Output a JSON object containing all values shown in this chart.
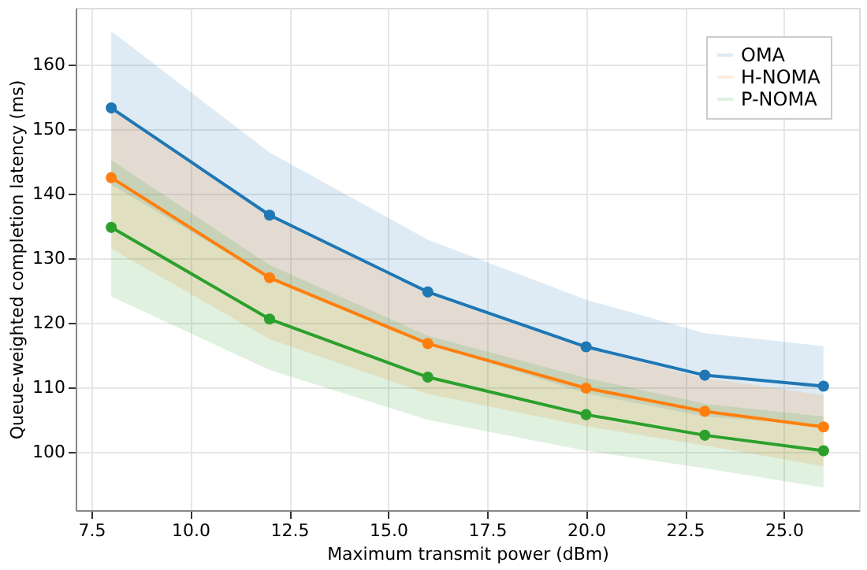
{
  "chart_data": {
    "type": "line",
    "xlabel": "Maximum transmit power (dBm)",
    "ylabel": "Queue-weighted completion latency (ms)",
    "x": [
      8,
      12,
      16,
      20,
      23,
      26
    ],
    "series": [
      {
        "name": "OMA",
        "color": "#1f77b4",
        "values": [
          153.3,
          136.7,
          124.8,
          116.3,
          111.9,
          110.2
        ],
        "lower": [
          141.4,
          127.0,
          116.8,
          109.1,
          105.5,
          104.1
        ],
        "upper": [
          165.2,
          146.4,
          132.9,
          123.6,
          118.4,
          116.4
        ]
      },
      {
        "name": "H-NOMA",
        "color": "#ff7f0e",
        "values": [
          142.5,
          127.0,
          116.8,
          109.9,
          106.3,
          103.9
        ],
        "lower": [
          131.5,
          117.5,
          109.0,
          104.0,
          101.0,
          97.8
        ],
        "upper": [
          153.5,
          136.5,
          124.5,
          116.0,
          111.5,
          108.8
        ]
      },
      {
        "name": "P-NOMA",
        "color": "#2ca02c",
        "values": [
          134.8,
          120.6,
          111.6,
          105.8,
          102.6,
          100.2
        ],
        "lower": [
          124.1,
          112.7,
          105.0,
          100.2,
          97.5,
          94.5
        ],
        "upper": [
          145.2,
          129.0,
          118.0,
          111.5,
          107.5,
          105.5
        ]
      }
    ],
    "xlim": [
      7.1,
      26.9
    ],
    "xticks": [
      {
        "value": 7.5,
        "label": "7.5"
      },
      {
        "value": 10,
        "label": "10.0"
      },
      {
        "value": 12.5,
        "label": "12.5"
      },
      {
        "value": 15,
        "label": "15.0"
      },
      {
        "value": 17.5,
        "label": "17.5"
      },
      {
        "value": 20,
        "label": "20.0"
      },
      {
        "value": 22.5,
        "label": "22.5"
      },
      {
        "value": 25,
        "label": "25.0"
      }
    ],
    "ylim": [
      91,
      168.8
    ],
    "yticks": [
      100,
      110,
      120,
      130,
      140,
      150,
      160
    ],
    "grid": true,
    "legend": "top right",
    "marker": "circle",
    "line_style": "solid"
  }
}
